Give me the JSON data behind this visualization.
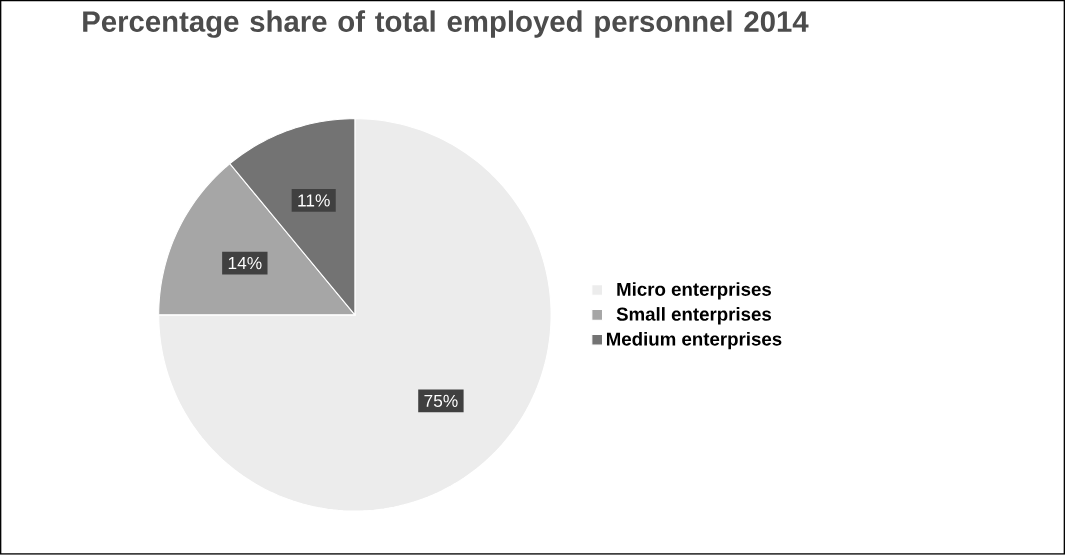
{
  "chart_data": {
    "type": "pie",
    "title": "Percentage share of total employed personnel 2014",
    "categories": [
      "Micro enterprises",
      "Small enterprises",
      "Medium enterprises"
    ],
    "values": [
      75,
      14,
      11
    ],
    "colors": [
      "#ececec",
      "#a6a6a6",
      "#737373"
    ],
    "value_labels": [
      "75%",
      "14%",
      "11%"
    ],
    "legend": "right"
  }
}
